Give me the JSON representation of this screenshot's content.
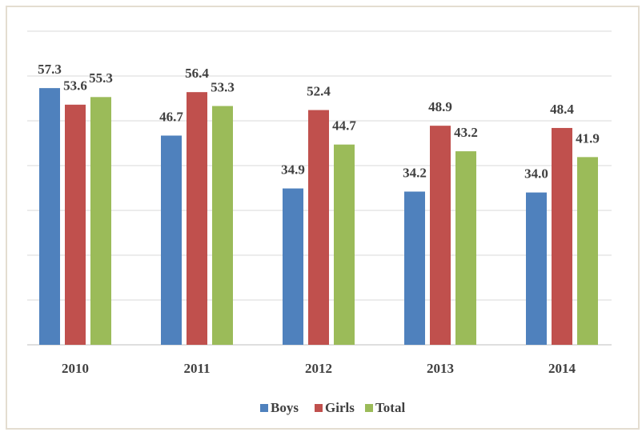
{
  "chart_data": {
    "type": "bar",
    "categories": [
      "2010",
      "2011",
      "2012",
      "2013",
      "2014"
    ],
    "series": [
      {
        "name": "Boys",
        "color": "#4f81bd",
        "values": [
          57.3,
          46.7,
          34.9,
          34.2,
          34.0
        ],
        "value_labels": [
          "57.3",
          "46.7",
          "34.9",
          "34.2",
          "34.0"
        ]
      },
      {
        "name": "Girls",
        "color": "#c0504d",
        "values": [
          53.6,
          56.4,
          52.4,
          48.9,
          48.4
        ],
        "value_labels": [
          "53.6",
          "56.4",
          "52.4",
          "48.9",
          "48.4"
        ]
      },
      {
        "name": "Total",
        "color": "#9bbb59",
        "values": [
          55.3,
          53.3,
          44.7,
          43.2,
          41.9
        ],
        "value_labels": [
          "55.3",
          "53.3",
          "44.7",
          "43.2",
          "41.9"
        ]
      }
    ],
    "ylim": [
      0,
      70
    ],
    "yticks": [
      0,
      10,
      20,
      30,
      40,
      50,
      60,
      70
    ],
    "grid": true,
    "legend": "bottom"
  }
}
